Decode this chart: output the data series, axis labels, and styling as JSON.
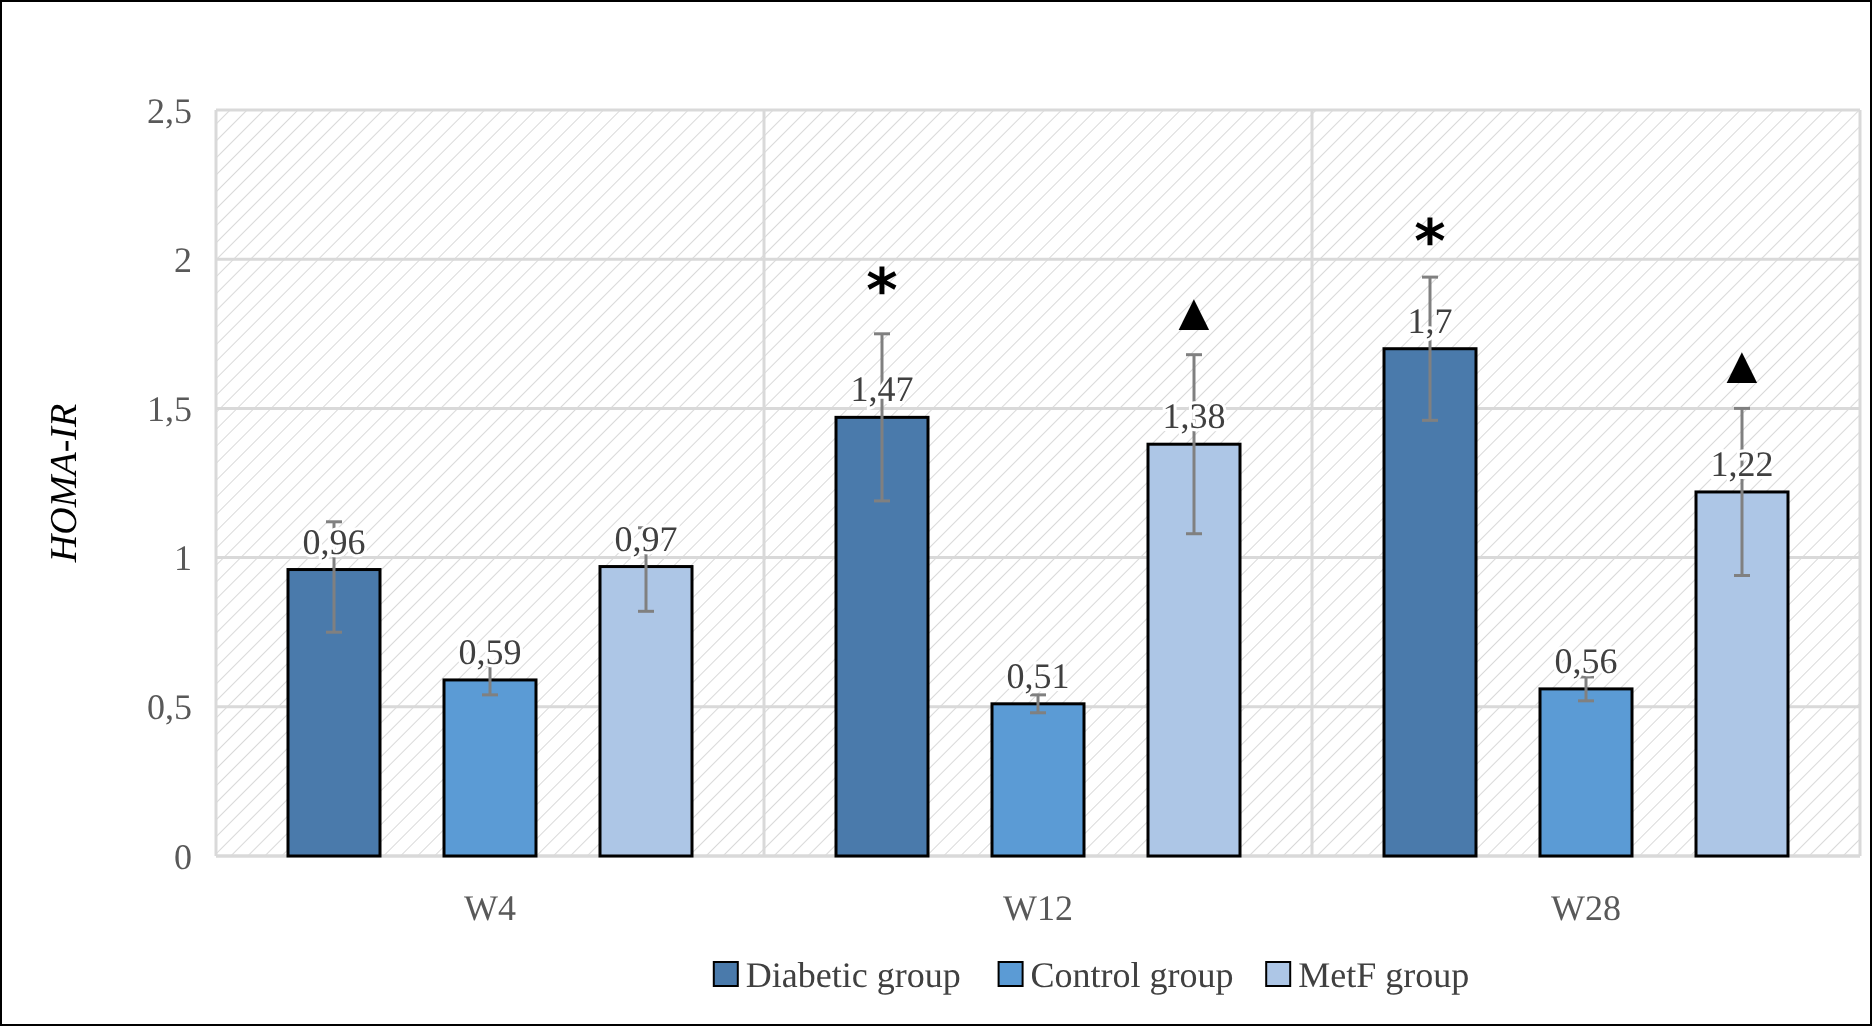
{
  "chart_data": {
    "type": "bar",
    "ylabel": "HOMA-IR",
    "categories": [
      "W4",
      "W12",
      "W28"
    ],
    "series": [
      {
        "name": "Diabetic group",
        "color": "#4a7aab",
        "values": [
          0.96,
          1.47,
          1.7
        ],
        "errors": [
          [
            0.75,
            1.12
          ],
          [
            1.19,
            1.75
          ],
          [
            1.46,
            1.94
          ]
        ],
        "value_labels": [
          "0,96",
          "1,47",
          "1,7"
        ]
      },
      {
        "name": "Control group",
        "color": "#5b9bd5",
        "values": [
          0.59,
          0.51,
          0.56
        ],
        "errors": [
          [
            0.54,
            0.64
          ],
          [
            0.48,
            0.54
          ],
          [
            0.52,
            0.6
          ]
        ],
        "value_labels": [
          "0,59",
          "0,51",
          "0,56"
        ]
      },
      {
        "name": "MetF group",
        "color": "#adc6e6",
        "values": [
          0.97,
          1.38,
          1.22
        ],
        "errors": [
          [
            0.82,
            1.1
          ],
          [
            1.08,
            1.68
          ],
          [
            0.94,
            1.5
          ]
        ],
        "value_labels": [
          "0,97",
          "1,38",
          "1,22"
        ]
      }
    ],
    "ylim": [
      0,
      2.5
    ],
    "yticks": [
      0,
      {
        "value": 0.5,
        "label": "0,5"
      },
      1,
      {
        "value": 1.5,
        "label": "1,5"
      },
      2,
      {
        "value": 2.5,
        "label": "2,5"
      }
    ],
    "grid": true,
    "legend": "bottom",
    "annotations": [
      "*",
      "▲",
      "*",
      "▲"
    ]
  }
}
